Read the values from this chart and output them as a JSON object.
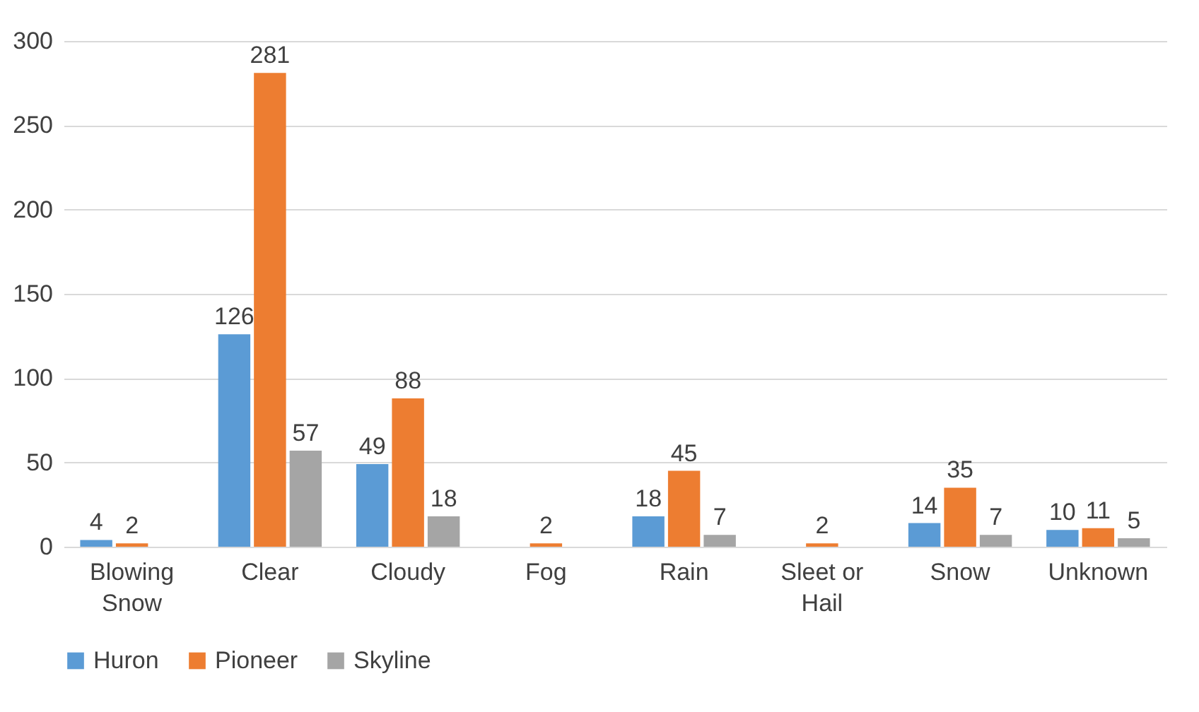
{
  "chart_data": {
    "type": "bar",
    "categories": [
      "Blowing Snow",
      "Clear",
      "Cloudy",
      "Fog",
      "Rain",
      "Sleet or Hail",
      "Snow",
      "Unknown"
    ],
    "series": [
      {
        "name": "Huron",
        "color": "#5b9bd5",
        "values": [
          4,
          126,
          49,
          null,
          18,
          null,
          14,
          10
        ]
      },
      {
        "name": "Pioneer",
        "color": "#ed7d31",
        "values": [
          2,
          281,
          88,
          2,
          45,
          2,
          35,
          11
        ]
      },
      {
        "name": "Skyline",
        "color": "#a5a5a5",
        "values": [
          null,
          57,
          18,
          null,
          7,
          null,
          7,
          5
        ]
      }
    ],
    "ylim": [
      0,
      300
    ],
    "yticks": [
      0,
      50,
      100,
      150,
      200,
      250,
      300
    ],
    "grid": "y",
    "legend": "bottom",
    "data_labels": true
  }
}
